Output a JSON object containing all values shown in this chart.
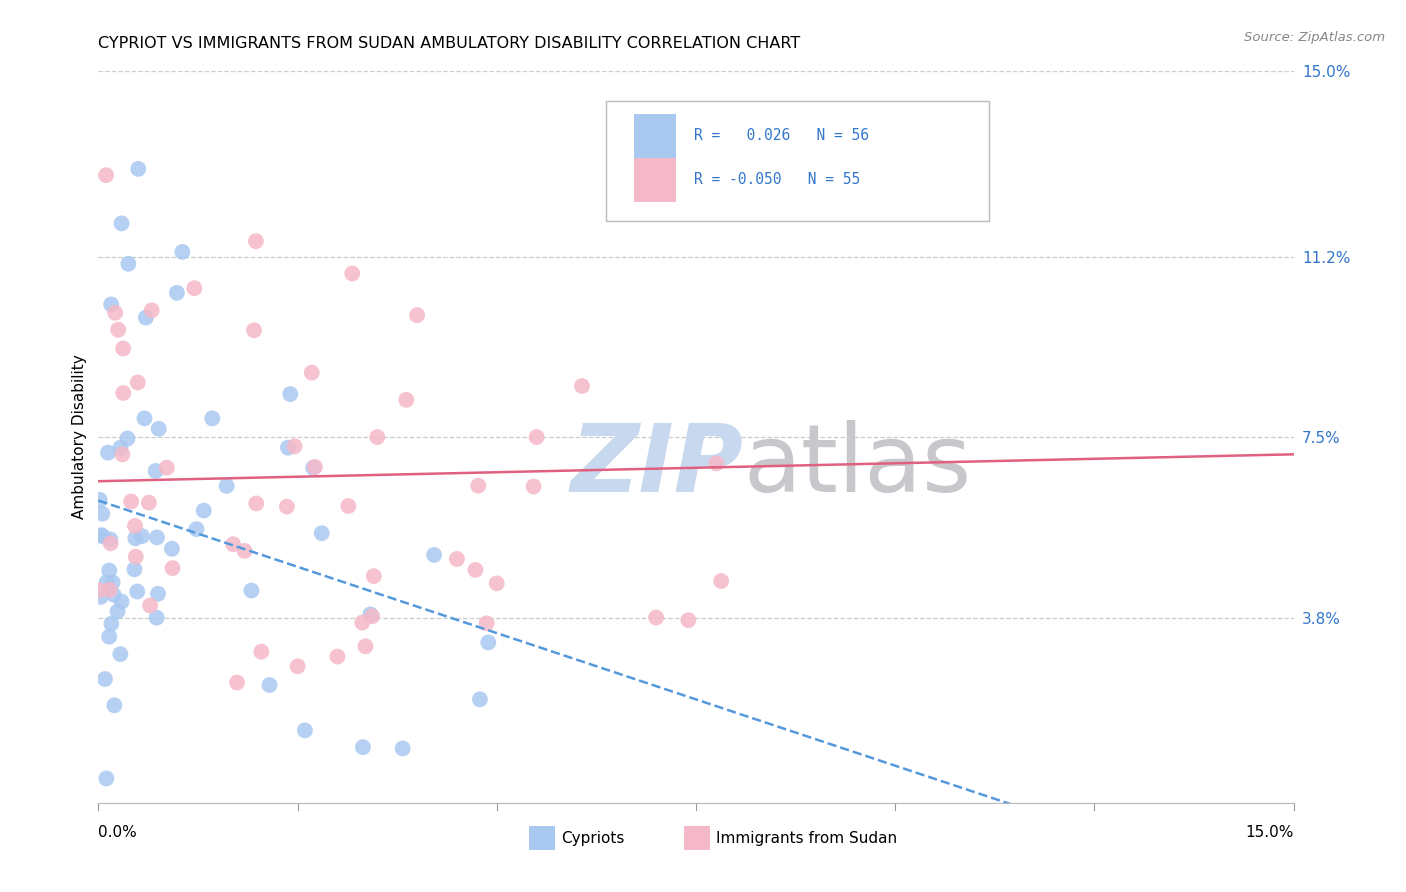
{
  "title": "CYPRIOT VS IMMIGRANTS FROM SUDAN AMBULATORY DISABILITY CORRELATION CHART",
  "source": "Source: ZipAtlas.com",
  "ylabel": "Ambulatory Disability",
  "xmin": 0.0,
  "xmax": 0.15,
  "ymin": 0.0,
  "ymax": 0.15,
  "yticks": [
    0.038,
    0.075,
    0.112,
    0.15
  ],
  "ytick_labels": [
    "3.8%",
    "7.5%",
    "11.2%",
    "15.0%"
  ],
  "xticks": [
    0.0,
    0.15
  ],
  "xtick_labels": [
    "0.0%",
    "15.0%"
  ],
  "grid_yticks": [
    0.0,
    0.038,
    0.075,
    0.112,
    0.15
  ],
  "color_cypriot": "#a8c8f0",
  "color_sudan": "#f5b8c8",
  "trendline_cypriot_color": "#5599dd",
  "trendline_sudan_color": "#e06080",
  "legend_R1": "0.026",
  "legend_N1": "56",
  "legend_R2": "-0.050",
  "legend_N2": "55",
  "cypriot_R": 0.026,
  "cypriot_N": 56,
  "sudan_R": -0.05,
  "sudan_N": 55,
  "watermark_zip_color": "#c8d8ee",
  "watermark_atlas_color": "#c8c8cc"
}
